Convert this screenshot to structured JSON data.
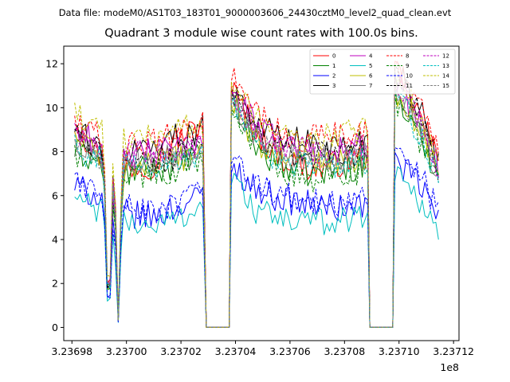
{
  "supertitle": "Data file: modeM0/AS1T03_183T01_9000003606_24430cztM0_level2_quad_clean.evt",
  "chart_data": {
    "type": "line",
    "title": "Quadrant 3 module wise count rates with 100.0s bins.",
    "xlabel": "",
    "ylabel": "",
    "x_offset_label": "1e8",
    "xlim": [
      3.236977,
      3.237122
    ],
    "ylim": [
      -0.6,
      12.8
    ],
    "x_ticks": [
      3.23698,
      3.237,
      3.23702,
      3.23704,
      3.23706,
      3.23708,
      3.2371,
      3.23712
    ],
    "x_tick_labels": [
      "3.23698",
      "3.23700",
      "3.23702",
      "3.23704",
      "3.23706",
      "3.23708",
      "3.23710",
      "3.23712"
    ],
    "y_ticks": [
      0,
      2,
      4,
      6,
      8,
      10,
      12
    ],
    "y_tick_labels": [
      "0",
      "2",
      "4",
      "6",
      "8",
      "10",
      "12"
    ],
    "legend_position": "top-right",
    "x_scale_note": "x values in units of 1e8 s",
    "segments": [
      {
        "x_start": 3.236981,
        "x_end": 3.2370285
      },
      {
        "x_start": 3.2370385,
        "x_end": 3.2370885
      },
      {
        "x_start": 3.2370985,
        "x_end": 3.2371148
      }
    ],
    "gap_value": 0,
    "series": [
      {
        "name": "0",
        "color": "#ff0000",
        "dash": "solid",
        "base": 7.6,
        "seg_profiles": [
          [
            9.2,
            7.8,
            7.3,
            7.4,
            8.6,
            9.2
          ],
          [
            10.9,
            8.7,
            7.6,
            7.2,
            7.5,
            7.8
          ],
          [
            11.6,
            10.6,
            9.2,
            7.6
          ]
        ]
      },
      {
        "name": "1",
        "color": "#008000",
        "dash": "solid",
        "base": 7.4,
        "seg_profiles": [
          [
            8.0,
            7.5,
            7.0,
            7.2,
            7.4,
            7.8
          ],
          [
            10.3,
            8.0,
            7.3,
            7.0,
            7.2,
            7.4
          ],
          [
            10.6,
            9.4,
            8.4,
            6.8
          ]
        ]
      },
      {
        "name": "2",
        "color": "#0000ff",
        "dash": "solid",
        "base": 5.7,
        "seg_profiles": [
          [
            6.4,
            6.0,
            5.2,
            5.0,
            5.5,
            6.0
          ],
          [
            7.4,
            6.2,
            5.8,
            5.6,
            5.4,
            5.6
          ],
          [
            7.6,
            7.0,
            6.2,
            5.0
          ]
        ]
      },
      {
        "name": "3",
        "color": "#000000",
        "dash": "solid",
        "base": 8.0,
        "seg_profiles": [
          [
            9.0,
            8.2,
            8.0,
            8.3,
            8.7,
            9.0
          ],
          [
            11.2,
            9.2,
            8.6,
            8.4,
            8.2,
            8.6
          ],
          [
            11.8,
            11.0,
            9.4,
            7.4
          ]
        ]
      },
      {
        "name": "4",
        "color": "#bf00bf",
        "dash": "solid",
        "base": 8.0,
        "seg_profiles": [
          [
            9.0,
            8.4,
            7.8,
            8.0,
            8.1,
            8.6
          ],
          [
            11.0,
            9.0,
            8.4,
            8.0,
            8.1,
            8.2
          ],
          [
            11.2,
            10.2,
            9.0,
            7.4
          ]
        ]
      },
      {
        "name": "5",
        "color": "#00bfbf",
        "dash": "solid",
        "base": 5.0,
        "seg_profiles": [
          [
            5.9,
            5.3,
            4.8,
            4.6,
            5.0,
            5.6
          ],
          [
            6.8,
            5.2,
            4.9,
            4.8,
            4.9,
            5.2
          ],
          [
            7.2,
            6.4,
            5.6,
            4.4
          ]
        ]
      },
      {
        "name": "6",
        "color": "#bfbf00",
        "dash": "solid",
        "base": 7.6,
        "seg_profiles": [
          [
            8.8,
            7.6,
            7.2,
            7.4,
            7.6,
            8.2
          ],
          [
            10.4,
            8.2,
            7.8,
            7.6,
            7.6,
            7.8
          ],
          [
            10.8,
            10.0,
            8.6,
            7.2
          ]
        ]
      },
      {
        "name": "7",
        "color": "#808080",
        "dash": "solid",
        "base": 7.8,
        "seg_profiles": [
          [
            8.4,
            7.8,
            7.6,
            7.7,
            7.8,
            8.0
          ],
          [
            10.6,
            8.4,
            7.8,
            7.6,
            7.6,
            7.8
          ],
          [
            11.0,
            10.0,
            8.6,
            7.0
          ]
        ]
      },
      {
        "name": "8",
        "color": "#ff0000",
        "dash": "dashed",
        "base": 8.2,
        "seg_profiles": [
          [
            9.4,
            8.6,
            8.2,
            8.4,
            8.8,
            9.2
          ],
          [
            11.4,
            9.6,
            8.6,
            8.6,
            8.8,
            9.0
          ],
          [
            12.0,
            11.0,
            9.6,
            7.8
          ]
        ]
      },
      {
        "name": "9",
        "color": "#008000",
        "dash": "dashed",
        "base": 7.2,
        "seg_profiles": [
          [
            8.0,
            7.4,
            7.0,
            7.0,
            7.2,
            7.8
          ],
          [
            10.0,
            7.8,
            7.0,
            6.8,
            7.0,
            7.2
          ],
          [
            10.4,
            9.2,
            8.2,
            6.6
          ]
        ]
      },
      {
        "name": "10",
        "color": "#0000ff",
        "dash": "dashed",
        "base": 5.9,
        "seg_profiles": [
          [
            6.6,
            6.2,
            5.6,
            5.2,
            5.6,
            6.2
          ],
          [
            7.6,
            6.4,
            6.0,
            5.8,
            5.6,
            5.8
          ],
          [
            8.4,
            7.6,
            6.6,
            5.2
          ]
        ]
      },
      {
        "name": "11",
        "color": "#000000",
        "dash": "dashed",
        "base": 7.8,
        "seg_profiles": [
          [
            8.6,
            7.8,
            7.6,
            7.6,
            7.8,
            8.2
          ],
          [
            10.8,
            8.6,
            8.0,
            7.8,
            7.8,
            8.0
          ],
          [
            11.6,
            10.6,
            9.2,
            7.2
          ]
        ]
      },
      {
        "name": "12",
        "color": "#bf00bf",
        "dash": "dashed",
        "base": 7.9,
        "seg_profiles": [
          [
            8.8,
            8.0,
            7.8,
            8.0,
            8.1,
            8.4
          ],
          [
            10.8,
            8.8,
            8.2,
            8.0,
            8.0,
            8.2
          ],
          [
            11.4,
            10.4,
            9.0,
            7.2
          ]
        ]
      },
      {
        "name": "13",
        "color": "#00bfbf",
        "dash": "dashed",
        "base": 7.6,
        "seg_profiles": [
          [
            8.2,
            7.6,
            7.4,
            7.4,
            7.6,
            7.8
          ],
          [
            10.2,
            8.0,
            7.6,
            7.4,
            7.4,
            7.6
          ],
          [
            10.6,
            9.6,
            8.4,
            6.8
          ]
        ]
      },
      {
        "name": "14",
        "color": "#bfbf00",
        "dash": "dashed",
        "base": 8.6,
        "seg_profiles": [
          [
            9.6,
            9.0,
            8.6,
            8.8,
            9.0,
            9.2
          ],
          [
            11.2,
            9.4,
            8.8,
            8.6,
            8.8,
            9.0
          ],
          [
            11.2,
            10.4,
            9.2,
            7.6
          ]
        ]
      },
      {
        "name": "15",
        "color": "#808080",
        "dash": "dashed",
        "base": 7.8,
        "seg_profiles": [
          [
            8.4,
            7.8,
            7.6,
            7.6,
            7.8,
            8.0
          ],
          [
            10.6,
            8.4,
            7.8,
            7.6,
            7.6,
            7.8
          ],
          [
            11.0,
            10.0,
            8.8,
            7.0
          ]
        ]
      }
    ]
  }
}
